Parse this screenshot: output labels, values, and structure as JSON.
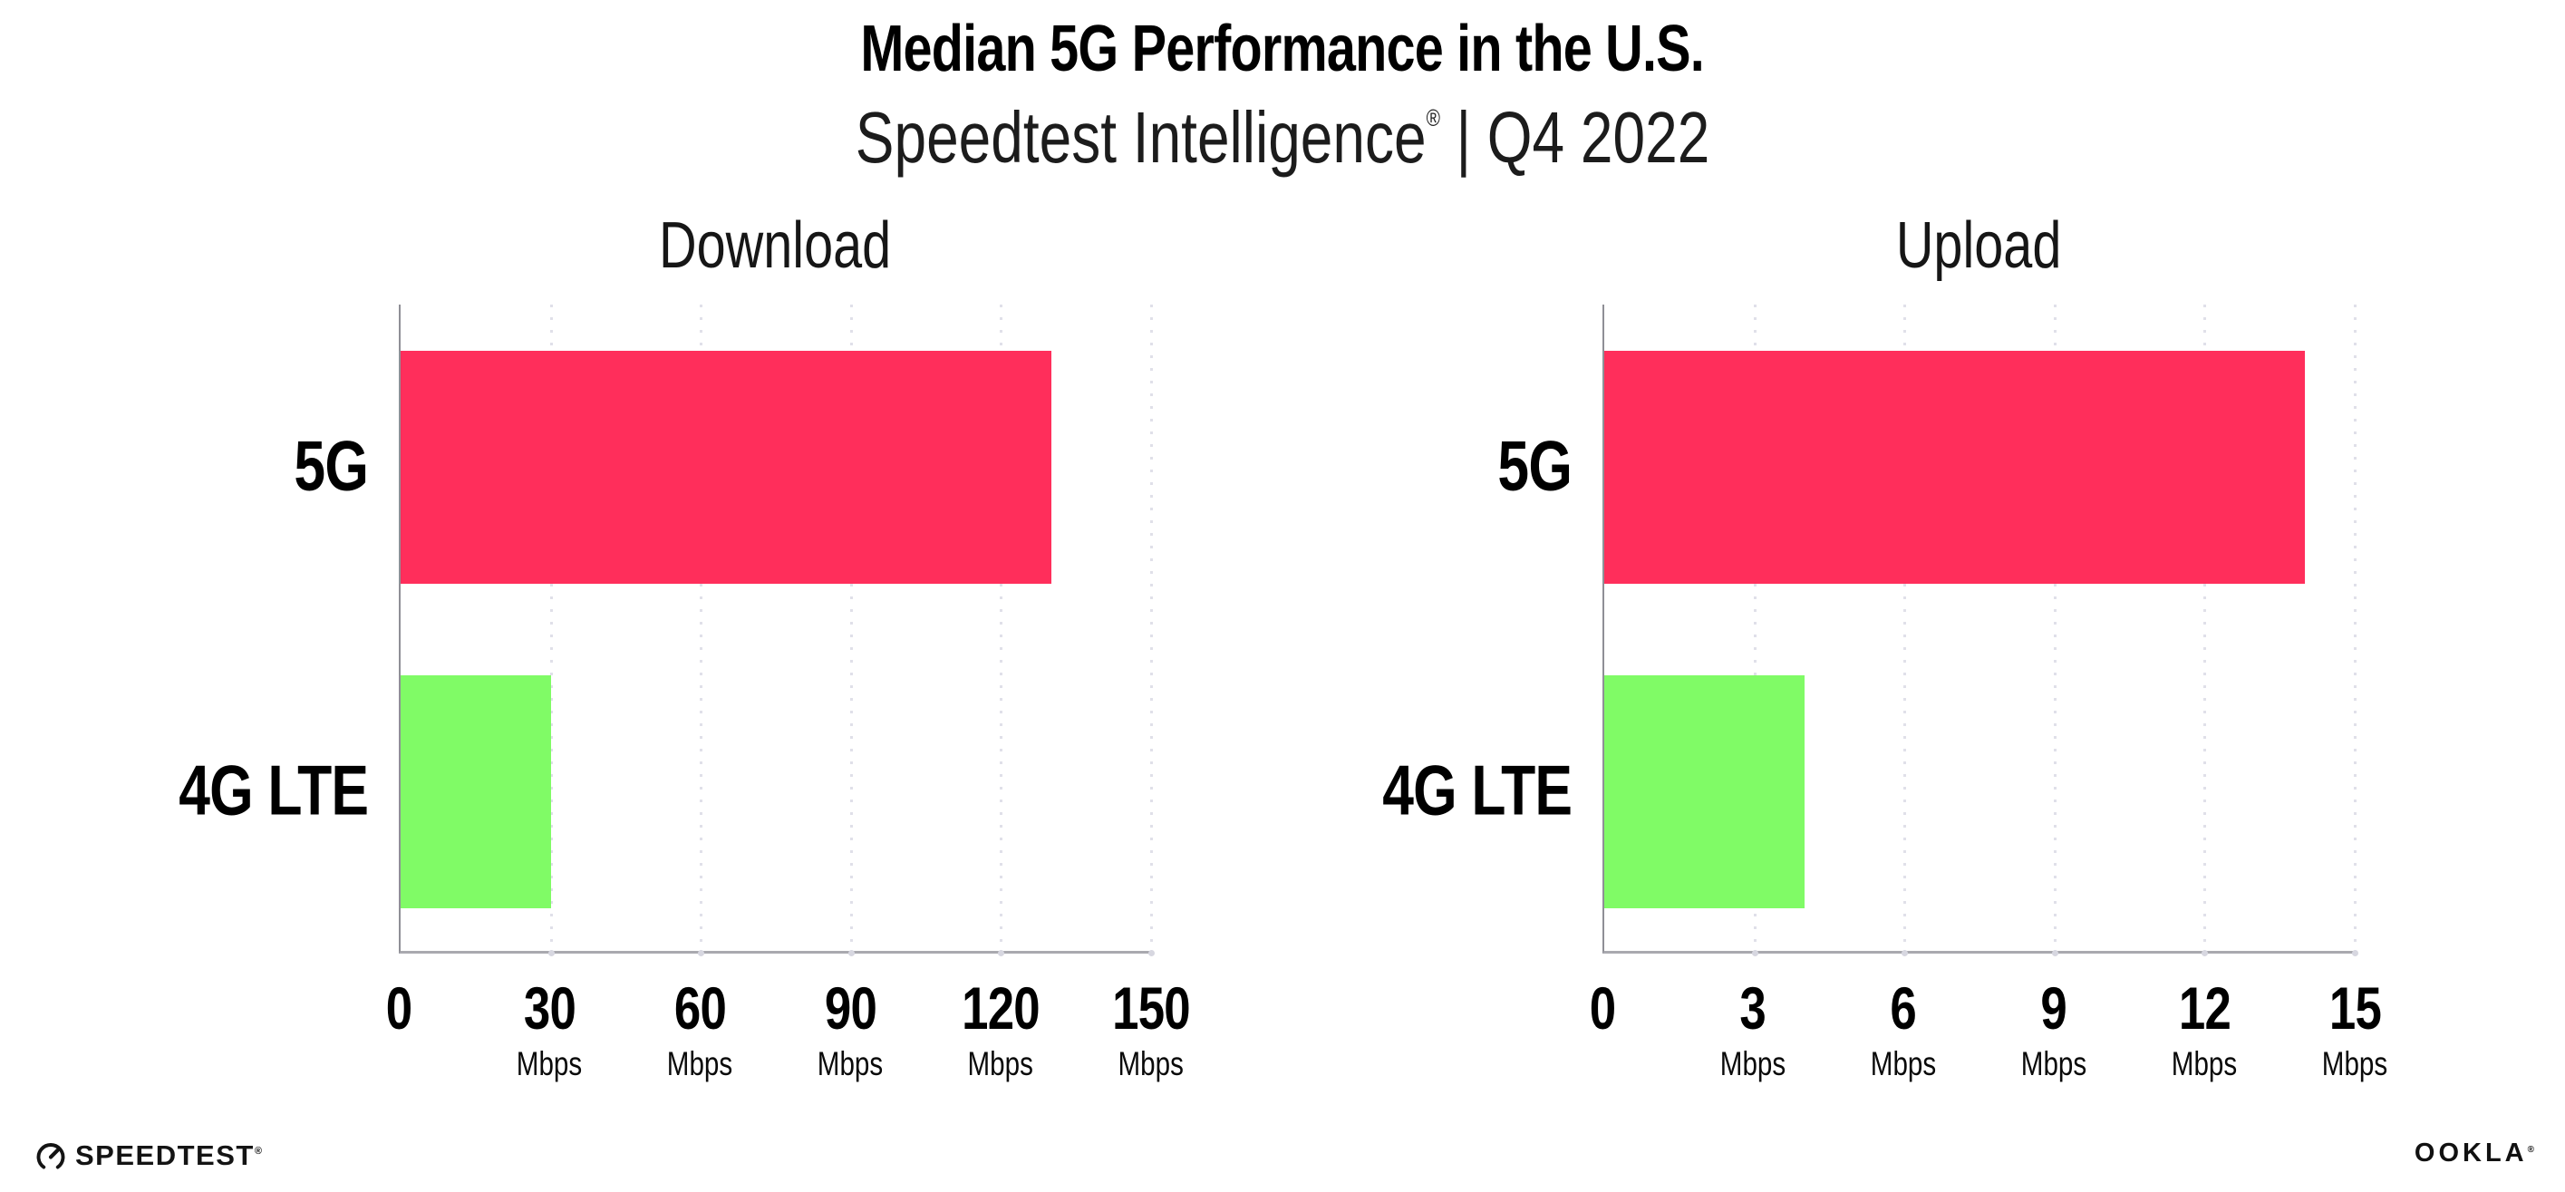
{
  "header": {
    "title": "Median 5G Performance in the U.S.",
    "subtitle_brand": "Speedtest Intelligence",
    "subtitle_reg": "®",
    "subtitle_sep": "|",
    "subtitle_period": "Q4 2022"
  },
  "colors": {
    "bar_5g_pink": "#FF2E5B",
    "bar_4g_green": "#80FB66",
    "axis_gray": "#A9A9AF",
    "gridline_gray": "#E0E0E9",
    "text_black": "#000000"
  },
  "chart_data": [
    {
      "type": "bar",
      "orientation": "horizontal",
      "title": "Download",
      "categories": [
        "5G",
        "4G LTE"
      ],
      "values": [
        130,
        30
      ],
      "unit": "Mbps",
      "xlim": [
        0,
        150
      ],
      "xticks": [
        0,
        30,
        60,
        90,
        120,
        150
      ],
      "tick_unit_label": "Mbps",
      "bar_colors": [
        "#FF2E5B",
        "#80FB66"
      ],
      "grid": "dotted-vertical",
      "legend": "none"
    },
    {
      "type": "bar",
      "orientation": "horizontal",
      "title": "Upload",
      "categories": [
        "5G",
        "4G LTE"
      ],
      "values": [
        14,
        4
      ],
      "unit": "Mbps",
      "xlim": [
        0,
        15
      ],
      "xticks": [
        0,
        3,
        6,
        9,
        12,
        15
      ],
      "tick_unit_label": "Mbps",
      "bar_colors": [
        "#FF2E5B",
        "#80FB66"
      ],
      "grid": "dotted-vertical",
      "legend": "none"
    }
  ],
  "footer": {
    "speedtest_label": "SPEEDTEST",
    "speedtest_reg": "®",
    "ookla_label": "OOKLA",
    "ookla_reg": "®"
  }
}
